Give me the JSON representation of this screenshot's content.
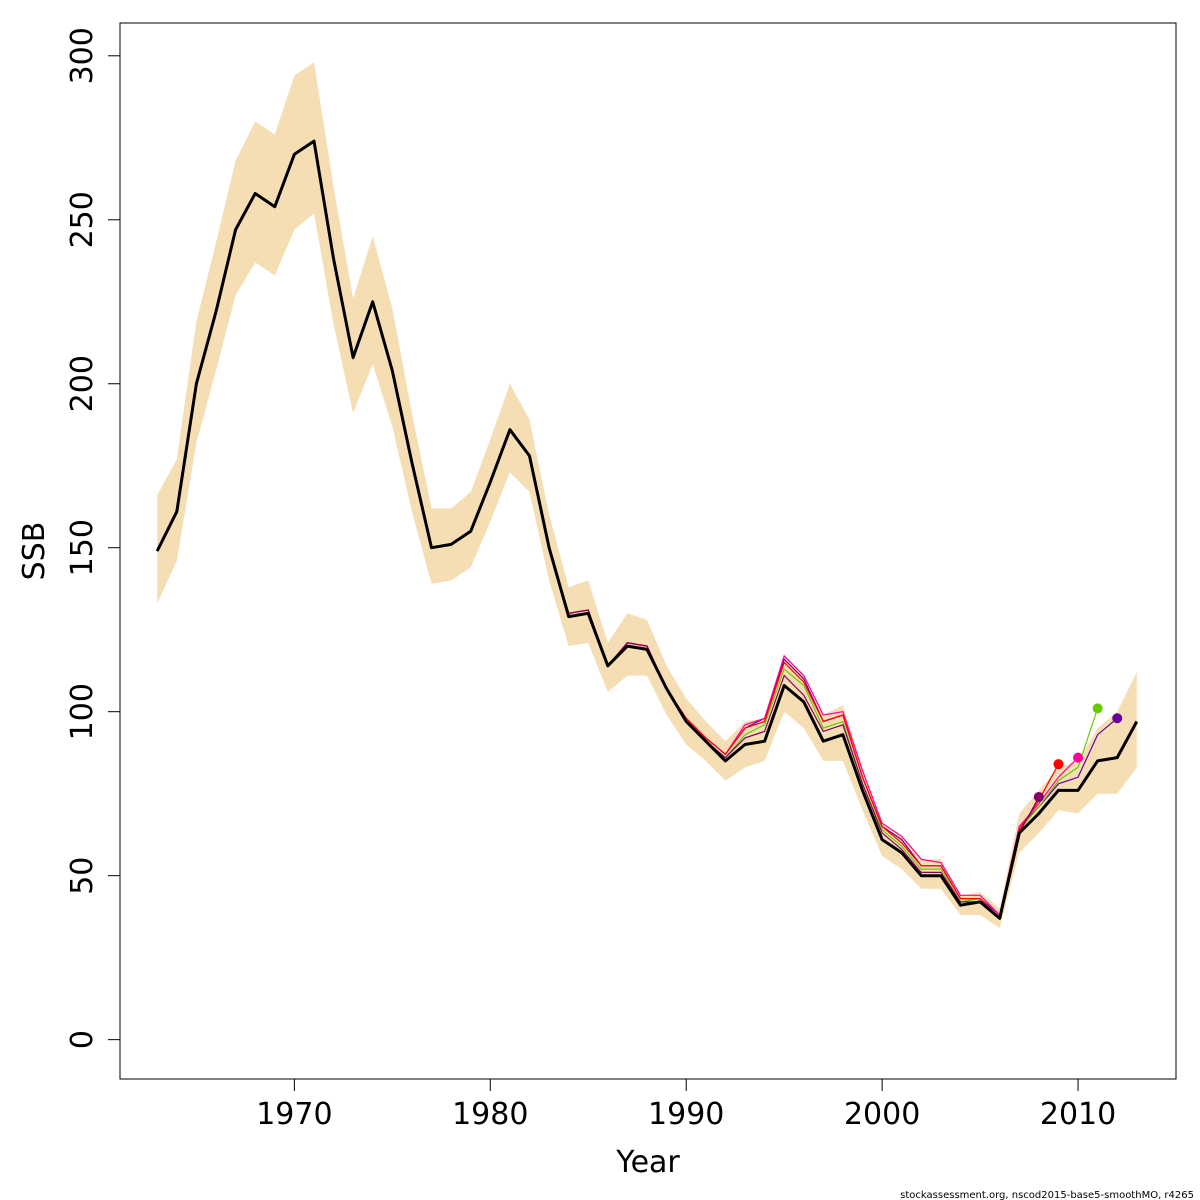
{
  "chart_data": {
    "type": "line",
    "xlabel": "Year",
    "ylabel": "SSB",
    "xlim": [
      1961.1,
      2015.0
    ],
    "ylim": [
      -12,
      310
    ],
    "x_ticks": [
      1970,
      1980,
      1990,
      2000,
      2010
    ],
    "y_ticks": [
      0,
      50,
      100,
      150,
      200,
      250,
      300
    ],
    "grid": false,
    "legend": "none",
    "footer": "stockassessment.org, nscod2015-base5-smoothMO, r4265",
    "colors": {
      "band": "#f5deb3",
      "main": "#000000",
      "retro_2012": "#660099",
      "retro_2011": "#66cc00",
      "retro_2010": "#ff0099",
      "retro_2009": "#ff0000",
      "retro_2008": "#880066"
    },
    "main_series": {
      "x": [
        1963,
        1964,
        1965,
        1966,
        1967,
        1968,
        1969,
        1970,
        1971,
        1972,
        1973,
        1974,
        1975,
        1976,
        1977,
        1978,
        1979,
        1980,
        1981,
        1982,
        1983,
        1984,
        1985,
        1986,
        1987,
        1988,
        1989,
        1990,
        1991,
        1992,
        1993,
        1994,
        1995,
        1996,
        1997,
        1998,
        1999,
        2000,
        2001,
        2002,
        2003,
        2004,
        2005,
        2006,
        2007,
        2008,
        2009,
        2010,
        2011,
        2012,
        2013
      ],
      "y": [
        149,
        161,
        200,
        222,
        247,
        258,
        254,
        270,
        274,
        238,
        208,
        225,
        204,
        176,
        150,
        151,
        155,
        170,
        186,
        178,
        150,
        129,
        130,
        114,
        120,
        119,
        107,
        97,
        91,
        85,
        90,
        91,
        108,
        103,
        91,
        93,
        76,
        61,
        57,
        50,
        50,
        41,
        42,
        37,
        63,
        69,
        76,
        76,
        85,
        86,
        97
      ],
      "lower": [
        133,
        146,
        182,
        204,
        227,
        237,
        233,
        247,
        252,
        218,
        191,
        206,
        187,
        161,
        139,
        140,
        144,
        158,
        173,
        167,
        140,
        120,
        121,
        106,
        111,
        111,
        99,
        90,
        85,
        79,
        83,
        85,
        100,
        95,
        85,
        85,
        70,
        56,
        52,
        46,
        46,
        38,
        38,
        34,
        57,
        63,
        70,
        69,
        75,
        75,
        83
      ],
      "upper": [
        166,
        177,
        219,
        243,
        268,
        280,
        276,
        294,
        298,
        260,
        226,
        245,
        223,
        191,
        162,
        162,
        167,
        183,
        200,
        189,
        160,
        138,
        140,
        121,
        130,
        128,
        114,
        104,
        97,
        91,
        97,
        98,
        117,
        111,
        99,
        102,
        83,
        66,
        62,
        55,
        55,
        44,
        45,
        40,
        69,
        76,
        83,
        85,
        95,
        100,
        112
      ]
    },
    "retro_series": [
      {
        "peel_year": 2012,
        "color": "#660099",
        "y": [
          149,
          161,
          200,
          222,
          247,
          258,
          254,
          270,
          274,
          238,
          208,
          225,
          204,
          176,
          150,
          151,
          155,
          170,
          186,
          178,
          150,
          130,
          131,
          114,
          121,
          120,
          107,
          98,
          92,
          87,
          95,
          98,
          116,
          110,
          97,
          99,
          80,
          65,
          61,
          53,
          53,
          43,
          43,
          38,
          65,
          71,
          78,
          80,
          93,
          98
        ]
      },
      {
        "peel_year": 2011,
        "color": "#66cc00",
        "y": [
          149,
          161,
          200,
          222,
          247,
          258,
          254,
          270,
          274,
          238,
          208,
          225,
          204,
          176,
          150,
          151,
          155,
          170,
          186,
          178,
          150,
          130,
          131,
          114,
          121,
          120,
          107,
          97,
          91,
          86,
          93,
          96,
          113,
          108,
          95,
          97,
          78,
          64,
          59,
          52,
          52,
          42,
          43,
          37,
          64,
          71,
          79,
          83,
          101
        ]
      },
      {
        "peel_year": 2010,
        "color": "#ff0099",
        "y": [
          149,
          161,
          200,
          222,
          247,
          258,
          254,
          270,
          274,
          238,
          208,
          225,
          204,
          176,
          150,
          151,
          155,
          170,
          186,
          178,
          150,
          130,
          131,
          114,
          121,
          120,
          107,
          98,
          92,
          87,
          96,
          98,
          117,
          111,
          99,
          100,
          82,
          66,
          62,
          55,
          54,
          44,
          44,
          38,
          65,
          72,
          80,
          86
        ]
      },
      {
        "peel_year": 2009,
        "color": "#ff0000",
        "y": [
          149,
          161,
          200,
          222,
          247,
          258,
          254,
          270,
          274,
          238,
          208,
          225,
          204,
          176,
          150,
          151,
          155,
          170,
          186,
          178,
          150,
          130,
          131,
          114,
          121,
          120,
          107,
          98,
          92,
          87,
          95,
          97,
          115,
          109,
          97,
          99,
          80,
          65,
          60,
          53,
          53,
          43,
          43,
          37,
          64,
          73,
          84
        ]
      },
      {
        "peel_year": 2008,
        "color": "#880066",
        "y": [
          149,
          161,
          200,
          222,
          247,
          258,
          254,
          270,
          274,
          238,
          208,
          225,
          204,
          176,
          150,
          151,
          155,
          170,
          186,
          178,
          150,
          130,
          131,
          114,
          121,
          120,
          107,
          97,
          91,
          86,
          92,
          94,
          111,
          105,
          94,
          96,
          78,
          63,
          58,
          51,
          51,
          42,
          42,
          37,
          63,
          74
        ]
      }
    ]
  }
}
